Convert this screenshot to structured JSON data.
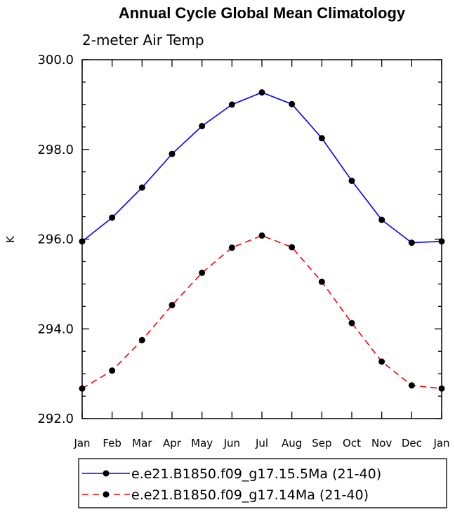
{
  "chart_data": {
    "type": "line",
    "title": "Annual Cycle Global Mean Climatology",
    "subtitle": "2-meter Air Temp",
    "xlabel": "",
    "ylabel": "K",
    "categories": [
      "Jan",
      "Feb",
      "Mar",
      "Apr",
      "May",
      "Jun",
      "Jul",
      "Aug",
      "Sep",
      "Oct",
      "Nov",
      "Dec",
      "Jan"
    ],
    "ylim": [
      292.0,
      300.0
    ],
    "yticks": [
      "292.0",
      "294.0",
      "296.0",
      "298.0",
      "300.0"
    ],
    "grid": false,
    "legend_position": "bottom",
    "series": [
      {
        "name": "e.e21.B1850.f09_g17.15.5Ma (21-40)",
        "color": "#0000ff",
        "dash": "solid",
        "values": [
          295.95,
          296.48,
          297.15,
          297.9,
          298.52,
          299.0,
          299.27,
          299.01,
          298.25,
          297.3,
          296.43,
          295.92,
          295.95
        ]
      },
      {
        "name": "e.e21.B1850.f09_g17.14Ma (21-40)",
        "color": "#ff0000",
        "dash": "dashed",
        "values": [
          292.67,
          293.07,
          293.75,
          294.53,
          295.25,
          295.81,
          296.08,
          295.82,
          295.05,
          294.13,
          293.27,
          292.74,
          292.67
        ]
      }
    ]
  }
}
